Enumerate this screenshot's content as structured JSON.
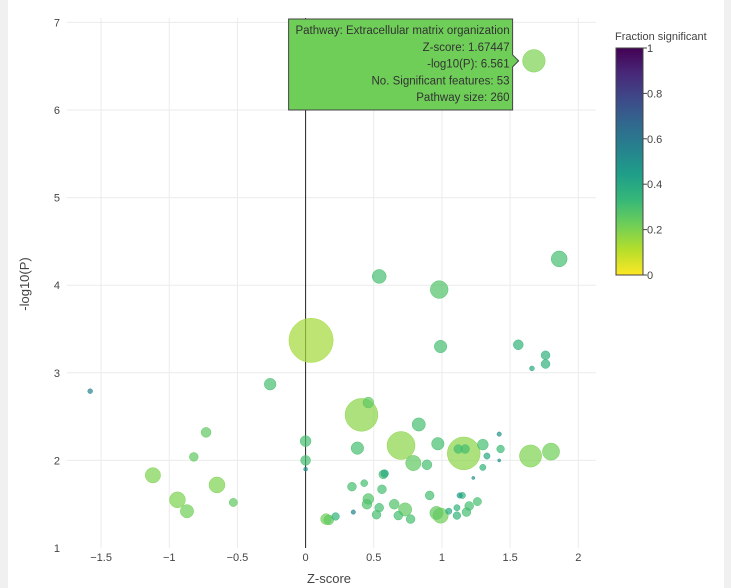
{
  "chart_data": {
    "type": "scatter",
    "xlabel": "Z-score",
    "ylabel": "-log10(P)",
    "xlim": [
      -1.75,
      2.13
    ],
    "ylim": [
      1.0,
      7.05
    ],
    "xticks": [
      -1.5,
      -1,
      -0.5,
      0,
      0.5,
      1,
      1.5,
      2
    ],
    "xtick_labels": [
      "−1.5",
      "−1",
      "−0.5",
      "0",
      "0.5",
      "1",
      "1.5",
      "2"
    ],
    "yticks": [
      1,
      2,
      3,
      4,
      5,
      6,
      7
    ],
    "ytick_labels": [
      "1",
      "2",
      "3",
      "4",
      "5",
      "6",
      "7"
    ],
    "grid": true,
    "size_encodes": "Pathway size",
    "color_encodes": "Fraction significant",
    "colorbar": {
      "title": "Fraction significant",
      "range": [
        0,
        1
      ],
      "ticks": [
        0,
        0.2,
        0.4,
        0.6,
        0.8,
        1
      ],
      "tick_labels": [
        "0",
        "0.2",
        "0.4",
        "0.6",
        "0.8",
        "1"
      ],
      "colors": [
        "#fde725",
        "#b5de2b",
        "#6ece58",
        "#35b779",
        "#1f9e89",
        "#26828e",
        "#31688e",
        "#3e4989",
        "#482878",
        "#440154"
      ]
    },
    "points": [
      {
        "x": 1.67447,
        "y": 6.561,
        "size": 260,
        "frac": 0.204,
        "pathway": "Extracellular matrix organization",
        "highlighted": true
      },
      {
        "x": 1.86,
        "y": 4.3,
        "size": 130,
        "frac": 0.3
      },
      {
        "x": 0.54,
        "y": 4.1,
        "size": 100,
        "frac": 0.3
      },
      {
        "x": 0.98,
        "y": 3.95,
        "size": 160,
        "frac": 0.28
      },
      {
        "x": 0.04,
        "y": 3.37,
        "size": 1000,
        "frac": 0.14
      },
      {
        "x": 0.99,
        "y": 3.3,
        "size": 80,
        "frac": 0.3
      },
      {
        "x": 1.56,
        "y": 3.32,
        "size": 50,
        "frac": 0.35
      },
      {
        "x": 1.76,
        "y": 3.2,
        "size": 40,
        "frac": 0.36
      },
      {
        "x": 1.76,
        "y": 3.1,
        "size": 40,
        "frac": 0.36
      },
      {
        "x": 1.66,
        "y": 3.05,
        "size": 12,
        "frac": 0.4
      },
      {
        "x": -1.58,
        "y": 2.79,
        "size": 12,
        "frac": 0.55
      },
      {
        "x": -0.26,
        "y": 2.87,
        "size": 70,
        "frac": 0.3
      },
      {
        "x": 0.41,
        "y": 2.52,
        "size": 550,
        "frac": 0.18
      },
      {
        "x": 0.46,
        "y": 2.66,
        "size": 60,
        "frac": 0.25
      },
      {
        "x": 0.83,
        "y": 2.41,
        "size": 90,
        "frac": 0.3
      },
      {
        "x": 0.7,
        "y": 2.17,
        "size": 400,
        "frac": 0.18
      },
      {
        "x": 0.97,
        "y": 2.19,
        "size": 80,
        "frac": 0.3
      },
      {
        "x": 1.16,
        "y": 2.08,
        "size": 550,
        "frac": 0.18
      },
      {
        "x": 1.3,
        "y": 2.18,
        "size": 60,
        "frac": 0.3
      },
      {
        "x": 1.42,
        "y": 2.3,
        "size": 10,
        "frac": 0.5
      },
      {
        "x": 1.43,
        "y": 2.13,
        "size": 30,
        "frac": 0.32
      },
      {
        "x": 1.65,
        "y": 2.05,
        "size": 250,
        "frac": 0.2
      },
      {
        "x": 1.8,
        "y": 2.1,
        "size": 150,
        "frac": 0.22
      },
      {
        "x": 1.12,
        "y": 2.13,
        "size": 40,
        "frac": 0.3
      },
      {
        "x": 1.17,
        "y": 2.13,
        "size": 40,
        "frac": 0.3
      },
      {
        "x": 1.33,
        "y": 2.05,
        "size": 20,
        "frac": 0.4
      },
      {
        "x": 1.42,
        "y": 2.0,
        "size": 5,
        "frac": 0.5
      },
      {
        "x": 0.38,
        "y": 2.14,
        "size": 80,
        "frac": 0.3
      },
      {
        "x": 0.0,
        "y": 2.22,
        "size": 60,
        "frac": 0.3
      },
      {
        "x": 0.0,
        "y": 2.0,
        "size": 50,
        "frac": 0.3
      },
      {
        "x": 0.0,
        "y": 1.9,
        "size": 8,
        "frac": 0.5
      },
      {
        "x": -0.73,
        "y": 2.32,
        "size": 50,
        "frac": 0.25
      },
      {
        "x": -0.82,
        "y": 2.04,
        "size": 40,
        "frac": 0.25
      },
      {
        "x": -1.12,
        "y": 1.83,
        "size": 120,
        "frac": 0.2
      },
      {
        "x": -0.65,
        "y": 1.72,
        "size": 130,
        "frac": 0.2
      },
      {
        "x": -0.94,
        "y": 1.55,
        "size": 130,
        "frac": 0.2
      },
      {
        "x": -0.87,
        "y": 1.42,
        "size": 90,
        "frac": 0.22
      },
      {
        "x": -0.53,
        "y": 1.52,
        "size": 35,
        "frac": 0.25
      },
      {
        "x": 0.58,
        "y": 1.85,
        "size": 30,
        "frac": 0.4
      },
      {
        "x": 0.57,
        "y": 1.84,
        "size": 40,
        "frac": 0.3
      },
      {
        "x": 0.79,
        "y": 1.97,
        "size": 120,
        "frac": 0.25
      },
      {
        "x": 0.89,
        "y": 1.95,
        "size": 50,
        "frac": 0.3
      },
      {
        "x": 1.3,
        "y": 1.92,
        "size": 20,
        "frac": 0.35
      },
      {
        "x": 1.23,
        "y": 1.8,
        "size": 5,
        "frac": 0.5
      },
      {
        "x": 0.34,
        "y": 1.7,
        "size": 40,
        "frac": 0.3
      },
      {
        "x": 0.43,
        "y": 1.74,
        "size": 25,
        "frac": 0.3
      },
      {
        "x": 0.56,
        "y": 1.67,
        "size": 40,
        "frac": 0.3
      },
      {
        "x": 0.91,
        "y": 1.6,
        "size": 40,
        "frac": 0.3
      },
      {
        "x": 1.13,
        "y": 1.6,
        "size": 15,
        "frac": 0.45
      },
      {
        "x": 1.15,
        "y": 1.6,
        "size": 20,
        "frac": 0.35
      },
      {
        "x": 1.26,
        "y": 1.53,
        "size": 35,
        "frac": 0.3
      },
      {
        "x": 0.46,
        "y": 1.56,
        "size": 60,
        "frac": 0.28
      },
      {
        "x": 0.45,
        "y": 1.5,
        "size": 50,
        "frac": 0.28
      },
      {
        "x": 0.65,
        "y": 1.5,
        "size": 50,
        "frac": 0.28
      },
      {
        "x": 0.54,
        "y": 1.46,
        "size": 40,
        "frac": 0.3
      },
      {
        "x": 0.52,
        "y": 1.38,
        "size": 40,
        "frac": 0.3
      },
      {
        "x": 0.68,
        "y": 1.37,
        "size": 40,
        "frac": 0.3
      },
      {
        "x": 0.73,
        "y": 1.44,
        "size": 90,
        "frac": 0.25
      },
      {
        "x": 0.77,
        "y": 1.33,
        "size": 40,
        "frac": 0.3
      },
      {
        "x": 0.96,
        "y": 1.4,
        "size": 90,
        "frac": 0.25
      },
      {
        "x": 0.99,
        "y": 1.37,
        "size": 120,
        "frac": 0.22
      },
      {
        "x": 1.05,
        "y": 1.42,
        "size": 20,
        "frac": 0.4
      },
      {
        "x": 1.11,
        "y": 1.46,
        "size": 20,
        "frac": 0.35
      },
      {
        "x": 1.11,
        "y": 1.37,
        "size": 30,
        "frac": 0.35
      },
      {
        "x": 1.18,
        "y": 1.41,
        "size": 40,
        "frac": 0.3
      },
      {
        "x": 1.2,
        "y": 1.48,
        "size": 40,
        "frac": 0.3
      },
      {
        "x": 0.35,
        "y": 1.41,
        "size": 10,
        "frac": 0.55
      },
      {
        "x": 0.22,
        "y": 1.36,
        "size": 30,
        "frac": 0.35
      },
      {
        "x": 0.15,
        "y": 1.33,
        "size": 60,
        "frac": 0.22
      },
      {
        "x": 0.17,
        "y": 1.32,
        "size": 50,
        "frac": 0.25
      }
    ]
  },
  "tooltip": {
    "lines": [
      "Pathway: Extracellular matrix organization",
      "Z-score:  1.67447",
      "-log10(P): 6.561",
      "No. Significant features: 53",
      "Pathway size: 260"
    ],
    "background": "#6ece58",
    "border": "#444444"
  },
  "spike_line": {
    "x": 0
  }
}
